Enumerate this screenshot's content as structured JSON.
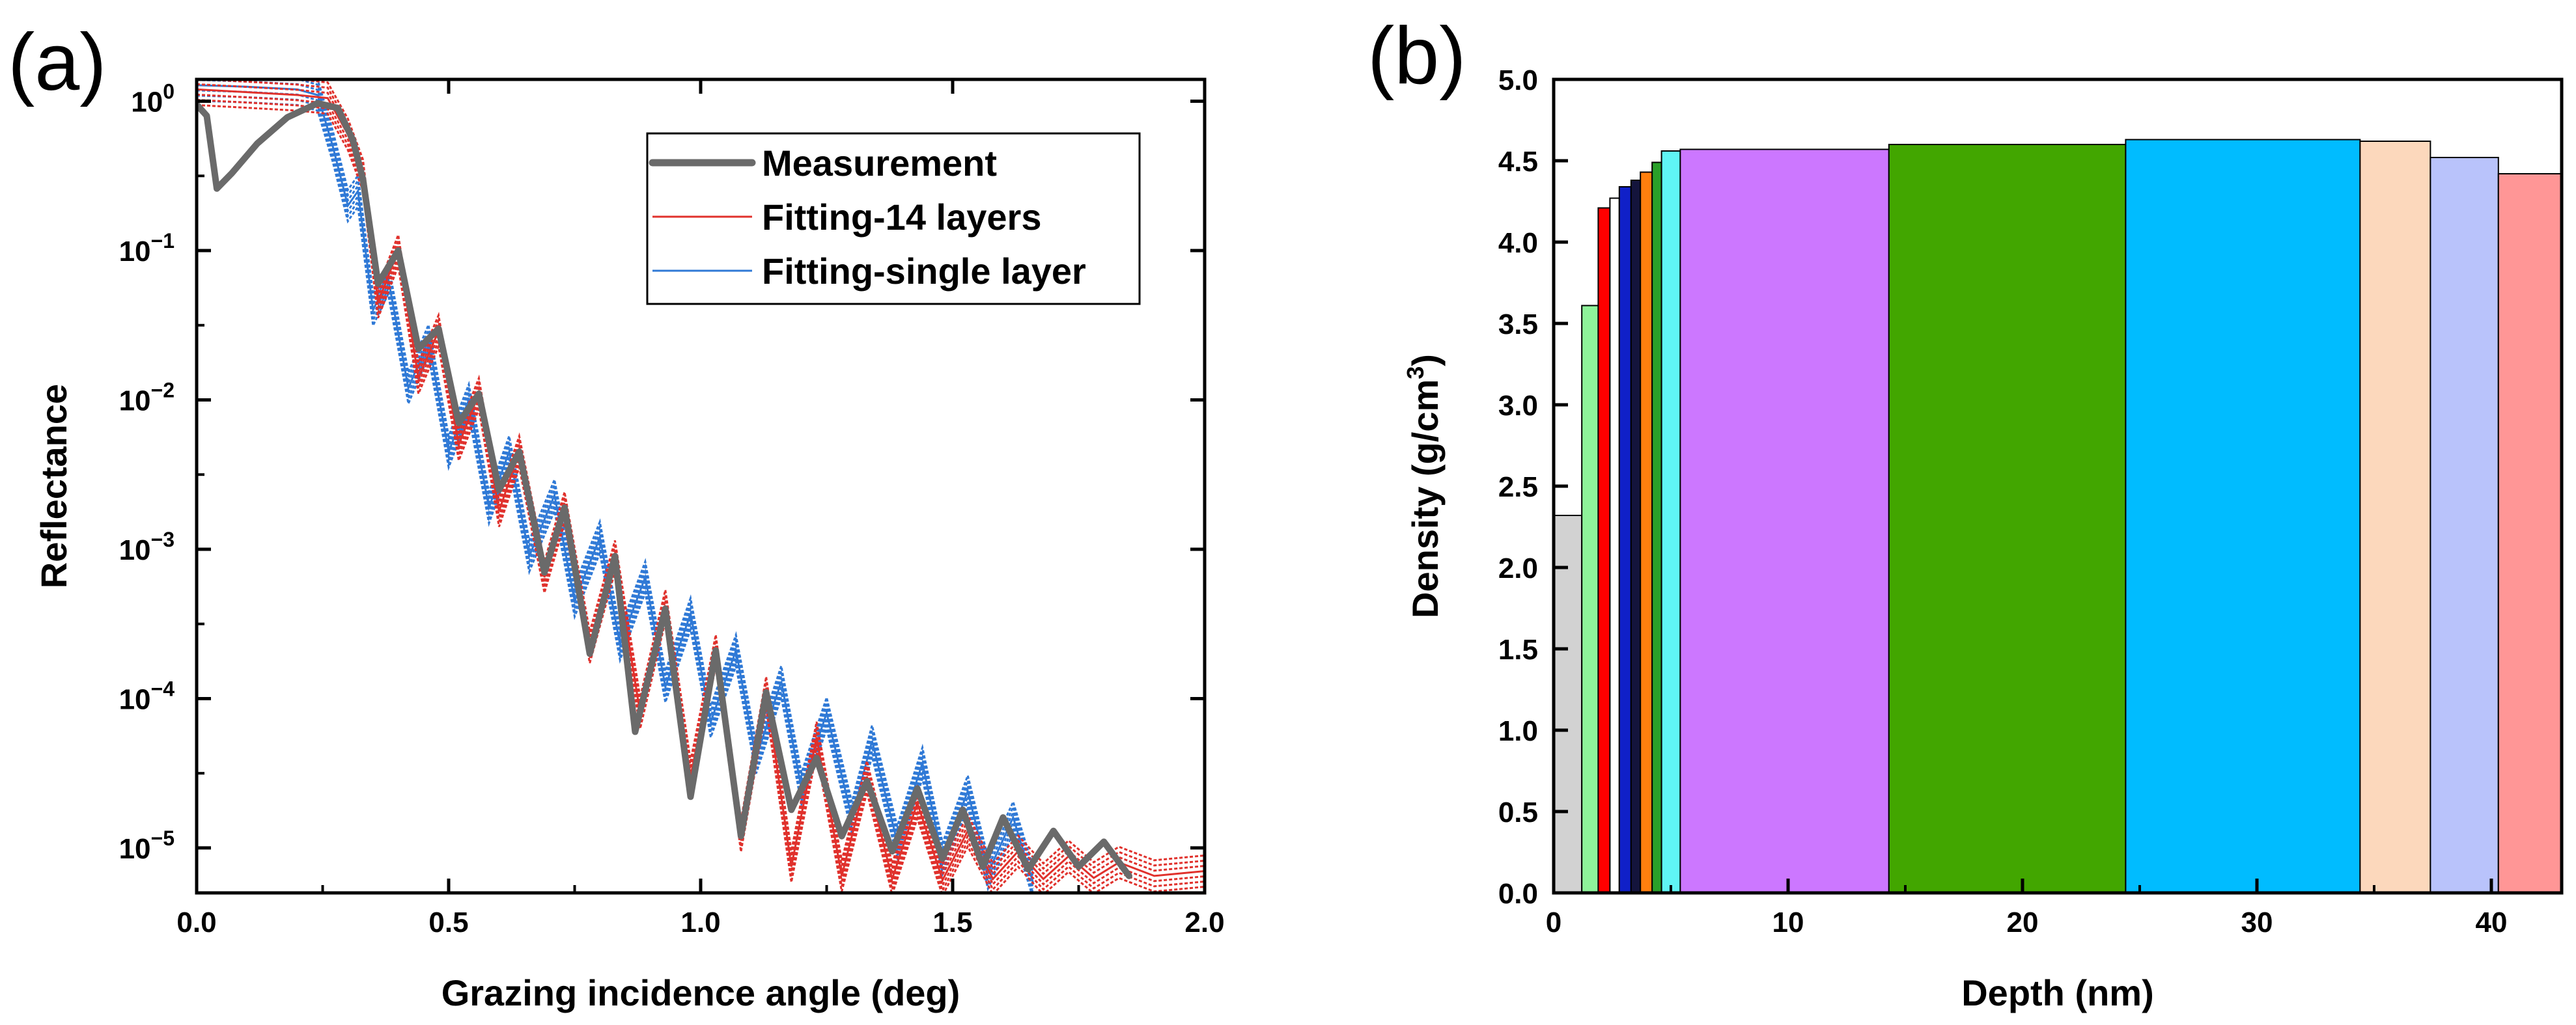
{
  "panels": [
    {
      "label": "(a)"
    },
    {
      "label": "(b)"
    }
  ],
  "chart_data": [
    {
      "type": "line",
      "panel": "(a)",
      "xlabel": "Grazing incidence angle (deg)",
      "ylabel": "Reflectance",
      "xlim": [
        0,
        2.0
      ],
      "ylim": [
        5e-06,
        1.4
      ],
      "yscale": "log",
      "xticks": [
        {
          "v": 0,
          "label": "0.0"
        },
        {
          "v": 0.5,
          "label": "0.5"
        },
        {
          "v": 1.0,
          "label": "1.0"
        },
        {
          "v": 1.5,
          "label": "1.5"
        },
        {
          "v": 2.0,
          "label": "2.0"
        }
      ],
      "yticks": [
        {
          "v": 1,
          "base": "10",
          "exp": "0"
        },
        {
          "v": 0.1,
          "base": "10",
          "exp": "−1"
        },
        {
          "v": 0.01,
          "base": "10",
          "exp": "−2"
        },
        {
          "v": 0.001,
          "base": "10",
          "exp": "−3"
        },
        {
          "v": 0.0001,
          "base": "10",
          "exp": "−4"
        },
        {
          "v": 1e-05,
          "base": "10",
          "exp": "−5"
        }
      ],
      "legend_position": "top-right",
      "series": [
        {
          "name": "Measurement",
          "color": "#6a6a6a",
          "style": "solid-thick",
          "points": [
            [
              0.0,
              0.95
            ],
            [
              0.02,
              0.8
            ],
            [
              0.04,
              0.26
            ],
            [
              0.07,
              0.33
            ],
            [
              0.12,
              0.52
            ],
            [
              0.18,
              0.78
            ],
            [
              0.24,
              0.97
            ],
            [
              0.28,
              0.9
            ],
            [
              0.31,
              0.55
            ],
            [
              0.33,
              0.3
            ],
            [
              0.36,
              0.06
            ],
            [
              0.4,
              0.1
            ],
            [
              0.44,
              0.022
            ],
            [
              0.48,
              0.03
            ],
            [
              0.52,
              0.007
            ],
            [
              0.56,
              0.011
            ],
            [
              0.6,
              0.0025
            ],
            [
              0.64,
              0.0045
            ],
            [
              0.69,
              0.0007
            ],
            [
              0.73,
              0.0019
            ],
            [
              0.78,
              0.0002
            ],
            [
              0.83,
              0.0009
            ],
            [
              0.87,
              6e-05
            ],
            [
              0.93,
              0.0004
            ],
            [
              0.98,
              2.2e-05
            ],
            [
              1.03,
              0.00021
            ],
            [
              1.08,
              1.2e-05
            ],
            [
              1.13,
              0.00011
            ],
            [
              1.18,
              1.8e-05
            ],
            [
              1.23,
              4e-05
            ],
            [
              1.28,
              1.2e-05
            ],
            [
              1.33,
              2.8e-05
            ],
            [
              1.38,
              9.5e-06
            ],
            [
              1.43,
              2.5e-05
            ],
            [
              1.48,
              8.5e-06
            ],
            [
              1.52,
              1.8e-05
            ],
            [
              1.56,
              7.5e-06
            ],
            [
              1.6,
              1.6e-05
            ],
            [
              1.65,
              7.2e-06
            ],
            [
              1.7,
              1.3e-05
            ],
            [
              1.75,
              7.5e-06
            ],
            [
              1.8,
              1.1e-05
            ],
            [
              1.85,
              6.5e-06
            ]
          ]
        },
        {
          "name": "Fitting-14 layers",
          "color": "#e0312c",
          "style": "thin-dense",
          "points": [
            [
              0.0,
              1.2
            ],
            [
              0.1,
              1.15
            ],
            [
              0.2,
              1.1
            ],
            [
              0.26,
              1.05
            ],
            [
              0.3,
              0.6
            ],
            [
              0.33,
              0.32
            ],
            [
              0.36,
              0.045
            ],
            [
              0.4,
              0.1
            ],
            [
              0.44,
              0.014
            ],
            [
              0.48,
              0.029
            ],
            [
              0.52,
              0.005
            ],
            [
              0.56,
              0.011
            ],
            [
              0.6,
              0.0018
            ],
            [
              0.64,
              0.0045
            ],
            [
              0.69,
              0.00065
            ],
            [
              0.73,
              0.0019
            ],
            [
              0.78,
              0.00022
            ],
            [
              0.83,
              0.0009
            ],
            [
              0.88,
              8e-05
            ],
            [
              0.93,
              0.00042
            ],
            [
              0.98,
              3e-05
            ],
            [
              1.03,
              0.00021
            ],
            [
              1.08,
              1.2e-05
            ],
            [
              1.13,
              0.00011
            ],
            [
              1.18,
              7.5e-06
            ],
            [
              1.23,
              5.5e-05
            ],
            [
              1.28,
              6.5e-06
            ],
            [
              1.33,
              3e-05
            ],
            [
              1.38,
              6.2e-06
            ],
            [
              1.43,
              2e-05
            ],
            [
              1.48,
              6.1e-06
            ],
            [
              1.53,
              1.3e-05
            ],
            [
              1.58,
              6.2e-06
            ],
            [
              1.63,
              9.5e-06
            ],
            [
              1.68,
              6.2e-06
            ],
            [
              1.73,
              8.8e-06
            ],
            [
              1.78,
              6.3e-06
            ],
            [
              1.83,
              8e-06
            ],
            [
              1.9,
              6.5e-06
            ],
            [
              2.0,
              7e-06
            ]
          ]
        },
        {
          "name": "Fitting-single layer",
          "color": "#2f79d6",
          "style": "thin-dense",
          "points": [
            [
              0.0,
              1.28
            ],
            [
              0.1,
              1.25
            ],
            [
              0.2,
              1.2
            ],
            [
              0.24,
              1.1
            ],
            [
              0.27,
              0.5
            ],
            [
              0.3,
              0.2
            ],
            [
              0.32,
              0.25
            ],
            [
              0.35,
              0.04
            ],
            [
              0.38,
              0.065
            ],
            [
              0.42,
              0.012
            ],
            [
              0.46,
              0.025
            ],
            [
              0.5,
              0.0045
            ],
            [
              0.54,
              0.01
            ],
            [
              0.58,
              0.0019
            ],
            [
              0.62,
              0.0045
            ],
            [
              0.66,
              0.0009
            ],
            [
              0.71,
              0.0023
            ],
            [
              0.75,
              0.00045
            ],
            [
              0.8,
              0.0012
            ],
            [
              0.84,
              0.00023
            ],
            [
              0.89,
              0.00065
            ],
            [
              0.93,
              0.00012
            ],
            [
              0.98,
              0.00037
            ],
            [
              1.02,
              7e-05
            ],
            [
              1.07,
              0.00021
            ],
            [
              1.11,
              4e-05
            ],
            [
              1.16,
              0.00013
            ],
            [
              1.2,
              2.5e-05
            ],
            [
              1.25,
              8e-05
            ],
            [
              1.3,
              1.6e-05
            ],
            [
              1.34,
              5.2e-05
            ],
            [
              1.39,
              1.1e-05
            ],
            [
              1.44,
              3.7e-05
            ],
            [
              1.48,
              8.5e-06
            ],
            [
              1.53,
              2.4e-05
            ],
            [
              1.57,
              6.8e-06
            ],
            [
              1.62,
              1.6e-05
            ],
            [
              1.66,
              5.8e-06
            ]
          ]
        }
      ]
    },
    {
      "type": "bar",
      "panel": "(b)",
      "xlabel": "Depth (nm)",
      "ylabel_base": "Density (g/cm",
      "ylabel_sup": "3",
      "ylabel_close": ")",
      "xlim": [
        0,
        43
      ],
      "ylim": [
        0,
        5.0
      ],
      "xticks": [
        {
          "v": 0,
          "label": "0"
        },
        {
          "v": 10,
          "label": "10"
        },
        {
          "v": 20,
          "label": "20"
        },
        {
          "v": 30,
          "label": "30"
        },
        {
          "v": 40,
          "label": "40"
        }
      ],
      "yticks": [
        {
          "v": 0,
          "label": "0.0"
        },
        {
          "v": 0.5,
          "label": "0.5"
        },
        {
          "v": 1.0,
          "label": "1.0"
        },
        {
          "v": 1.5,
          "label": "1.5"
        },
        {
          "v": 2.0,
          "label": "2.0"
        },
        {
          "v": 2.5,
          "label": "2.5"
        },
        {
          "v": 3.0,
          "label": "3.0"
        },
        {
          "v": 3.5,
          "label": "3.5"
        },
        {
          "v": 4.0,
          "label": "4.0"
        },
        {
          "v": 4.5,
          "label": "4.5"
        },
        {
          "v": 5.0,
          "label": "5.0"
        }
      ],
      "layers": [
        {
          "x0": 0.0,
          "x1": 1.2,
          "density": 2.32,
          "color": "#d2d2d2"
        },
        {
          "x0": 1.2,
          "x1": 1.9,
          "density": 3.61,
          "color": "#8ef29a"
        },
        {
          "x0": 1.9,
          "x1": 2.4,
          "density": 4.21,
          "color": "#ff0000"
        },
        {
          "x0": 2.4,
          "x1": 2.8,
          "density": 4.27,
          "color": "#ffffff"
        },
        {
          "x0": 2.8,
          "x1": 3.3,
          "density": 4.34,
          "color": "#1020c8"
        },
        {
          "x0": 3.3,
          "x1": 3.7,
          "density": 4.38,
          "color": "#14143c"
        },
        {
          "x0": 3.7,
          "x1": 4.2,
          "density": 4.43,
          "color": "#ff7f0e"
        },
        {
          "x0": 4.2,
          "x1": 4.6,
          "density": 4.49,
          "color": "#2aa02a"
        },
        {
          "x0": 4.6,
          "x1": 5.4,
          "density": 4.56,
          "color": "#5ff5f5"
        },
        {
          "x0": 5.4,
          "x1": 14.3,
          "density": 4.57,
          "color": "#cc77ff"
        },
        {
          "x0": 14.3,
          "x1": 24.4,
          "density": 4.6,
          "color": "#42a600"
        },
        {
          "x0": 24.4,
          "x1": 34.4,
          "density": 4.63,
          "color": "#00bcff"
        },
        {
          "x0": 34.4,
          "x1": 37.4,
          "density": 4.62,
          "color": "#fcd8bc"
        },
        {
          "x0": 37.4,
          "x1": 40.3,
          "density": 4.52,
          "color": "#b9c3fb"
        },
        {
          "x0": 40.3,
          "x1": 43.0,
          "density": 4.42,
          "color": "#ff9696"
        }
      ]
    }
  ]
}
